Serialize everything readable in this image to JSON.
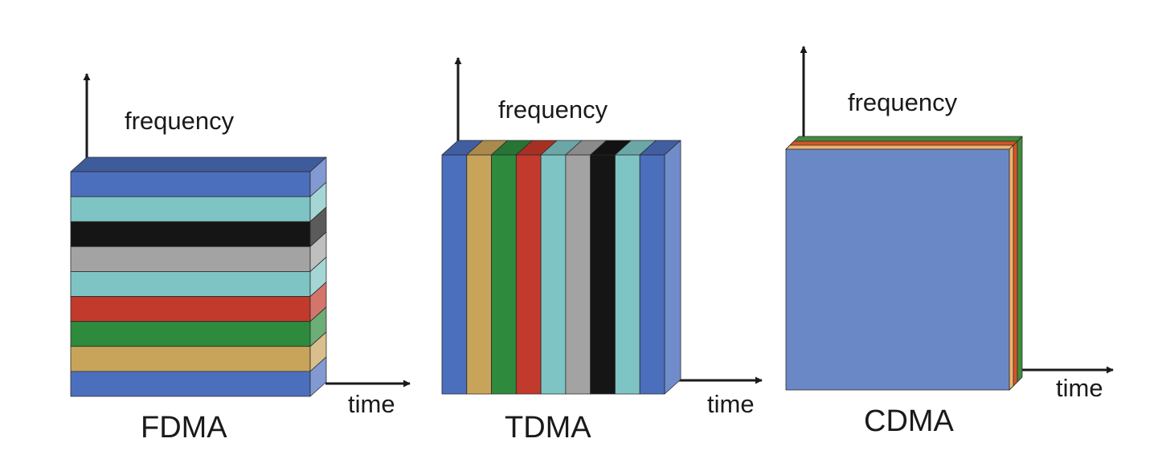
{
  "panels": [
    {
      "scheme": "FDMA",
      "y_axis_label": "frequency",
      "x_axis_label": "time",
      "slices": [
        "blue",
        "light-teal",
        "black",
        "gray",
        "light-teal",
        "red",
        "green",
        "gold",
        "blue"
      ]
    },
    {
      "scheme": "TDMA",
      "y_axis_label": "frequency",
      "x_axis_label": "time",
      "slices": [
        "blue",
        "gold",
        "green",
        "red",
        "light-teal",
        "gray",
        "black",
        "light-teal",
        "blue"
      ]
    },
    {
      "scheme": "CDMA",
      "y_axis_label": "frequency",
      "x_axis_label": "time",
      "layers": [
        "blue",
        "gold",
        "red",
        "green"
      ]
    }
  ],
  "colors": {
    "blue": "#4c6fbd",
    "light-teal": "#7fc4c4",
    "black": "#151515",
    "gray": "#a3a3a3",
    "red": "#c23a2b",
    "green": "#2e8a3d",
    "gold": "#c8a45a",
    "cdma-face": "#6b88c6",
    "cdma-layer-gold": "#f0b46a",
    "cdma-layer-red": "#d3552a",
    "cdma-layer-green": "#3f8d3a",
    "axis": "#1a1a1a"
  }
}
